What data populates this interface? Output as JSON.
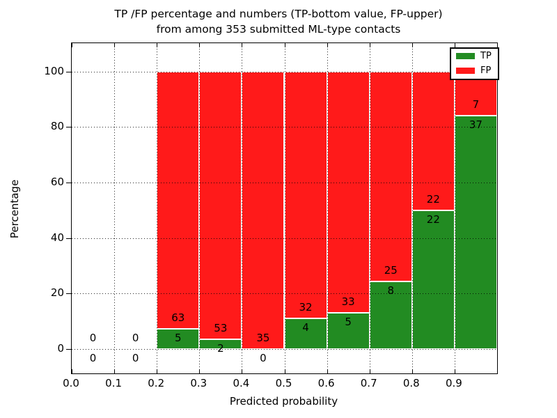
{
  "chart_data": {
    "type": "bar",
    "stacked": true,
    "normalized_to_percent": 100,
    "title_line1": "TP /FP percentage and numbers (TP-bottom value, FP-upper)",
    "title_line2": "from among 353 submitted ML-type contacts",
    "total_contacts": 353,
    "xlabel": "Predicted probability",
    "ylabel": "Percentage",
    "xlim": [
      0.0,
      1.0
    ],
    "ylim": [
      -9,
      110
    ],
    "bin_width": 0.1,
    "grid": {
      "style": "dotted",
      "color": "#000000"
    },
    "x_tick_labels": [
      "0.0",
      "0.1",
      "0.2",
      "0.3",
      "0.4",
      "0.5",
      "0.6",
      "0.7",
      "0.8",
      "0.9"
    ],
    "y_tick_labels": [
      "0",
      "20",
      "40",
      "60",
      "80",
      "100"
    ],
    "y_tick_values": [
      0,
      20,
      40,
      60,
      80,
      100
    ],
    "categories": [
      "0.0-0.1",
      "0.1-0.2",
      "0.2-0.3",
      "0.3-0.4",
      "0.4-0.5",
      "0.5-0.6",
      "0.6-0.7",
      "0.7-0.8",
      "0.8-0.9",
      "0.9-1.0"
    ],
    "series": [
      {
        "name": "TP",
        "color": "#228b22",
        "values": [
          0,
          0,
          5,
          2,
          0,
          4,
          5,
          8,
          22,
          37
        ]
      },
      {
        "name": "FP",
        "color": "#ff1a1a",
        "values": [
          0,
          0,
          63,
          53,
          35,
          32,
          33,
          25,
          22,
          7
        ]
      }
    ],
    "annotation_note": "numbers shown on bars are TP (bottom) and FP (upper) counts per bin",
    "legend": {
      "position": "upper right",
      "entries": [
        "TP",
        "FP"
      ]
    }
  }
}
